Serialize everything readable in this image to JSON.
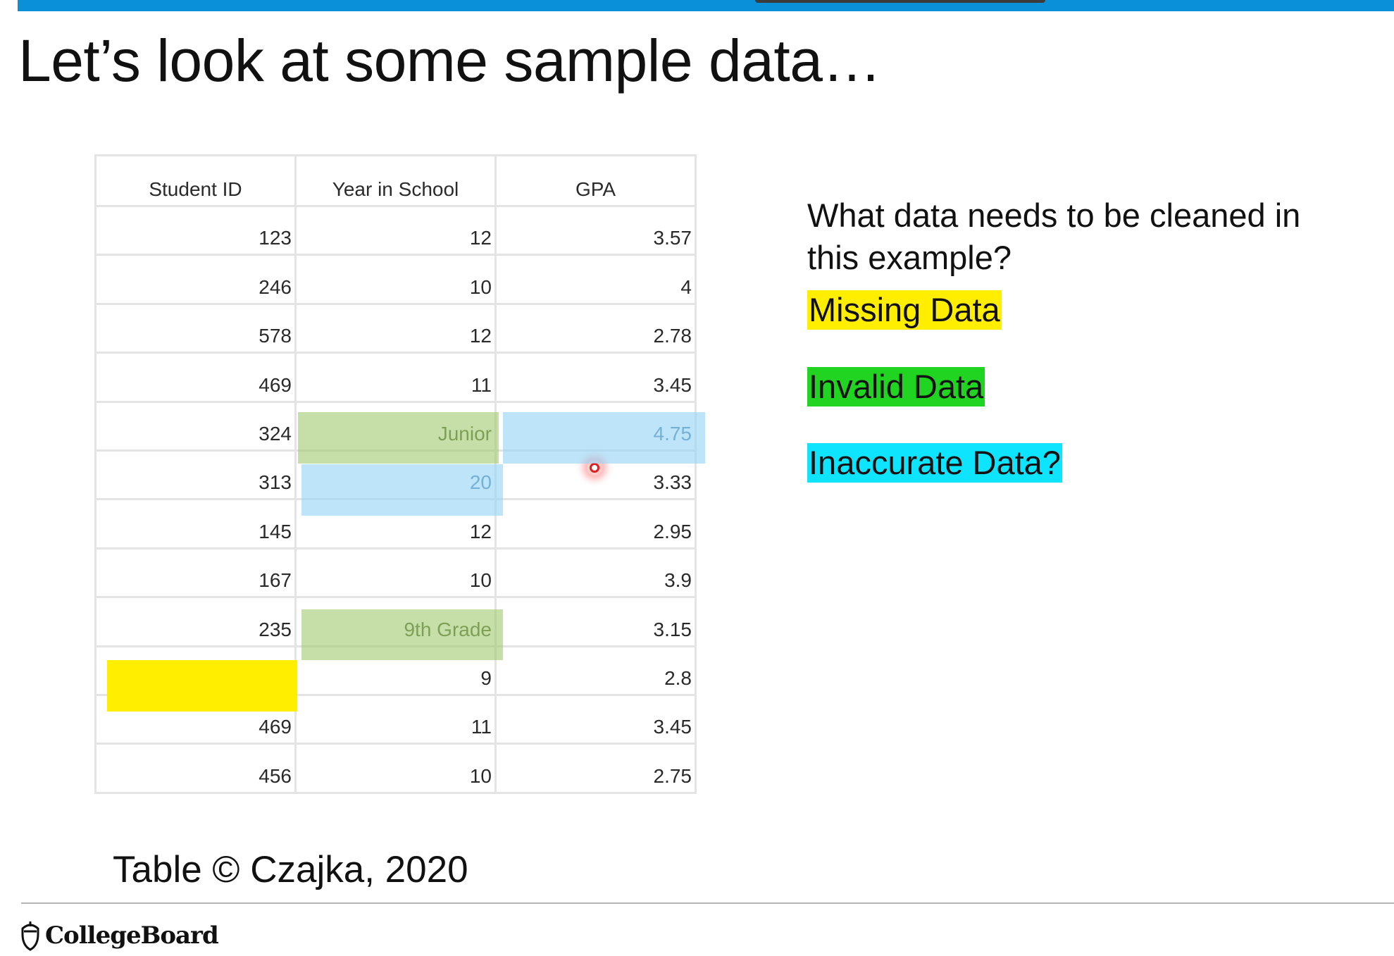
{
  "slide": {
    "title": "Let’s look at some sample data…",
    "caption": "Table © Czajka, 2020",
    "logo_text": "CollegeBoard"
  },
  "table": {
    "headers": [
      "Student ID",
      "Year in School",
      "GPA"
    ],
    "rows": [
      [
        "123",
        "12",
        "3.57"
      ],
      [
        "246",
        "10",
        "4"
      ],
      [
        "578",
        "12",
        "2.78"
      ],
      [
        "469",
        "11",
        "3.45"
      ],
      [
        "324",
        "Junior",
        "4.75"
      ],
      [
        "313",
        "20",
        "3.33"
      ],
      [
        "145",
        "12",
        "2.95"
      ],
      [
        "167",
        "10",
        "3.9"
      ],
      [
        "235",
        "9th Grade",
        "3.15"
      ],
      [
        "",
        "9",
        "2.8"
      ],
      [
        "469",
        "11",
        "3.45"
      ],
      [
        "456",
        "10",
        "2.75"
      ]
    ]
  },
  "question": {
    "text": "What data needs to be cleaned in this example?"
  },
  "legend": {
    "missing": "Missing Data",
    "invalid": "Invalid Data",
    "inaccurate": "Inaccurate Data?"
  },
  "colors": {
    "top_bar": "#0a8fd9",
    "missing": "#ffee00",
    "invalid": "#22d422",
    "inaccurate": "#0fe4ff"
  }
}
